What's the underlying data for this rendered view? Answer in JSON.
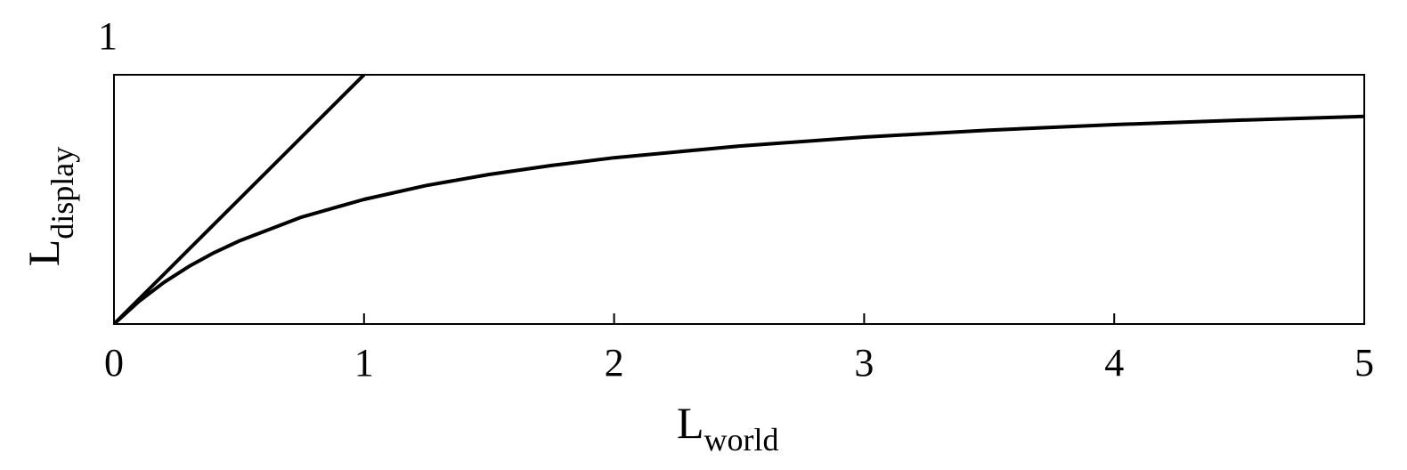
{
  "chart_data": {
    "type": "line",
    "title": "",
    "xlabel": {
      "main": "L",
      "sub": "world"
    },
    "ylabel": {
      "main": "L",
      "sub": "display"
    },
    "xlim": [
      0,
      5
    ],
    "ylim": [
      0,
      1
    ],
    "x_ticks": [
      0,
      1,
      2,
      3,
      4,
      5
    ],
    "x_tick_labels": [
      "0",
      "1",
      "2",
      "3",
      "4",
      "5"
    ],
    "y_top_label": "1",
    "grid": false,
    "legend": "none",
    "series": [
      {
        "x": [
          0,
          0.1,
          0.2,
          0.3,
          0.4,
          0.5,
          0.6,
          0.7,
          0.8,
          0.9,
          1.0
        ],
        "y": [
          0,
          0.1,
          0.2,
          0.3,
          0.4,
          0.5,
          0.6,
          0.7,
          0.8,
          0.9,
          1.0
        ]
      },
      {
        "x": [
          0,
          0.1,
          0.2,
          0.3,
          0.4,
          0.5,
          0.75,
          1.0,
          1.25,
          1.5,
          1.75,
          2.0,
          2.5,
          3.0,
          3.5,
          4.0,
          4.5,
          5.0
        ],
        "y": [
          0,
          0.091,
          0.167,
          0.231,
          0.286,
          0.333,
          0.429,
          0.5,
          0.556,
          0.6,
          0.636,
          0.667,
          0.714,
          0.75,
          0.778,
          0.8,
          0.818,
          0.833
        ]
      }
    ],
    "color": "#000000"
  }
}
